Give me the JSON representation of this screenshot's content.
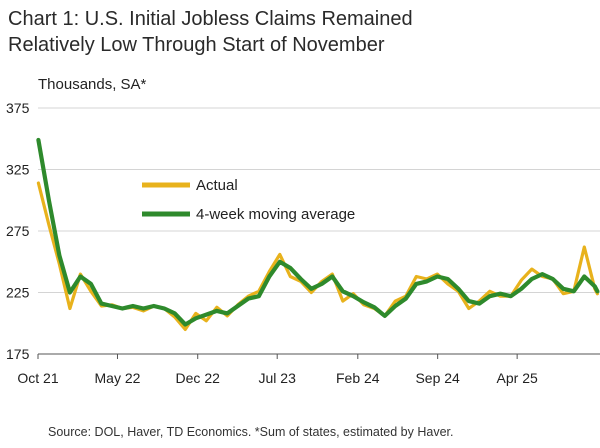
{
  "chart_data": {
    "type": "line",
    "title_line1": "Chart 1: U.S. Initial Jobless Claims Remained",
    "title_line2": "Relatively Low Through Start of November",
    "ylabel": "Thousands, SA*",
    "source": "Source: DOL, Haver, TD Economics. *Sum of states, estimated by Haver.",
    "ylim": [
      175,
      375
    ],
    "yticks": [
      "375",
      "325",
      "275",
      "225",
      "175"
    ],
    "xticks": [
      {
        "label": "Oct 21",
        "date": "2021-10"
      },
      {
        "label": "May 22",
        "date": "2022-05"
      },
      {
        "label": "Dec 22",
        "date": "2022-12"
      },
      {
        "label": "Jul 23",
        "date": "2023-07"
      },
      {
        "label": "Feb 24",
        "date": "2024-02"
      },
      {
        "label": "Sep 24",
        "date": "2024-09"
      },
      {
        "label": "Apr 25",
        "date": "2025-04"
      }
    ],
    "grid": "horizontal",
    "legend_position": "center-left",
    "series": [
      {
        "name": "Actual",
        "color": "#e8b21c",
        "x": [
          "2021-10-02",
          "2021-10-30",
          "2021-11-27",
          "2021-12-25",
          "2022-01-22",
          "2022-02-19",
          "2022-03-19",
          "2022-04-16",
          "2022-05-14",
          "2022-06-11",
          "2022-07-09",
          "2022-08-06",
          "2022-09-03",
          "2022-10-01",
          "2022-10-29",
          "2022-11-26",
          "2022-12-24",
          "2023-01-21",
          "2023-02-18",
          "2023-03-18",
          "2023-04-15",
          "2023-05-13",
          "2023-06-10",
          "2023-07-08",
          "2023-08-05",
          "2023-09-02",
          "2023-09-30",
          "2023-10-28",
          "2023-11-25",
          "2023-12-23",
          "2024-01-20",
          "2024-02-17",
          "2024-03-16",
          "2024-04-13",
          "2024-05-11",
          "2024-06-08",
          "2024-07-06",
          "2024-08-03",
          "2024-08-31",
          "2024-09-28",
          "2024-10-26",
          "2024-11-23",
          "2024-12-21",
          "2025-01-18",
          "2025-02-15",
          "2025-03-15",
          "2025-04-12",
          "2025-05-10",
          "2025-06-07",
          "2025-07-05",
          "2025-08-02",
          "2025-08-30",
          "2025-09-27",
          "2025-10-25",
          "2025-11-01"
        ],
        "values": [
          314,
          280,
          248,
          212,
          240,
          226,
          214,
          215,
          212,
          213,
          210,
          214,
          212,
          205,
          195,
          208,
          202,
          213,
          206,
          215,
          222,
          226,
          242,
          256,
          238,
          234,
          225,
          234,
          240,
          218,
          224,
          215,
          212,
          206,
          218,
          222,
          238,
          236,
          240,
          232,
          226,
          212,
          218,
          226,
          222,
          222,
          235,
          244,
          238,
          236,
          224,
          226,
          262,
          228,
          224
        ]
      },
      {
        "name": "4-week moving average",
        "color": "#2e8a2c",
        "x": [
          "2021-10-02",
          "2021-10-30",
          "2021-11-27",
          "2021-12-25",
          "2022-01-22",
          "2022-02-19",
          "2022-03-19",
          "2022-04-16",
          "2022-05-14",
          "2022-06-11",
          "2022-07-09",
          "2022-08-06",
          "2022-09-03",
          "2022-10-01",
          "2022-10-29",
          "2022-11-26",
          "2022-12-24",
          "2023-01-21",
          "2023-02-18",
          "2023-03-18",
          "2023-04-15",
          "2023-05-13",
          "2023-06-10",
          "2023-07-08",
          "2023-08-05",
          "2023-09-02",
          "2023-09-30",
          "2023-10-28",
          "2023-11-25",
          "2023-12-23",
          "2024-01-20",
          "2024-02-17",
          "2024-03-16",
          "2024-04-13",
          "2024-05-11",
          "2024-06-08",
          "2024-07-06",
          "2024-08-03",
          "2024-08-31",
          "2024-09-28",
          "2024-10-26",
          "2024-11-23",
          "2024-12-21",
          "2025-01-18",
          "2025-02-15",
          "2025-03-15",
          "2025-04-12",
          "2025-05-10",
          "2025-06-07",
          "2025-07-05",
          "2025-08-02",
          "2025-08-30",
          "2025-09-27",
          "2025-10-25",
          "2025-11-01"
        ],
        "values": [
          349,
          300,
          255,
          225,
          238,
          232,
          216,
          214,
          212,
          214,
          212,
          214,
          212,
          208,
          199,
          204,
          207,
          210,
          208,
          214,
          220,
          222,
          238,
          250,
          245,
          236,
          228,
          232,
          238,
          226,
          222,
          217,
          213,
          206,
          214,
          220,
          232,
          234,
          238,
          236,
          228,
          218,
          216,
          222,
          224,
          222,
          228,
          236,
          240,
          236,
          228,
          226,
          238,
          230,
          226
        ]
      }
    ]
  }
}
